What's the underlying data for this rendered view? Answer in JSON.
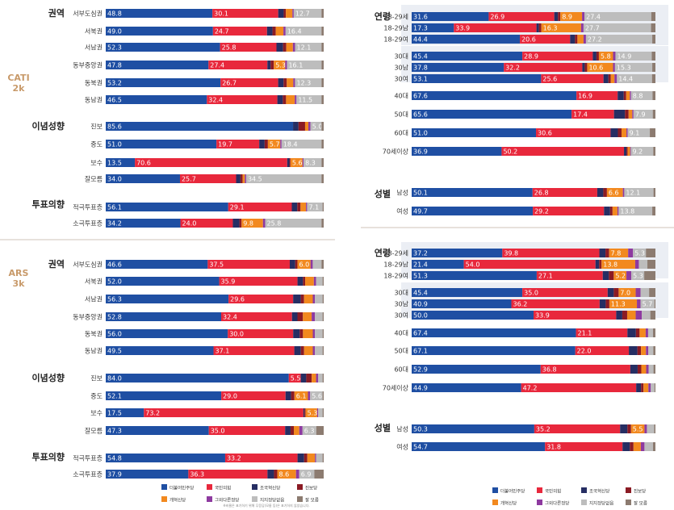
{
  "modes": {
    "cati": "CATI 2k",
    "ars": "ARS 3k"
  },
  "footnote": "※비율은 표기하기 위해 무응답(모름 등)은 표기하지 않았습니다.",
  "colors": {
    "democratic": "#1f4fa3",
    "ppp": "#e8283c",
    "rebuilding": "#262e63",
    "progressive": "#8b1b24",
    "reform": "#f2891f",
    "basic_income": "#8e3aa0",
    "none": "#bdbdbd",
    "dont_know": "#8c7b70"
  },
  "legend": [
    {
      "key": "democratic",
      "label": "더불어민주당"
    },
    {
      "key": "ppp",
      "label": "국민의힘"
    },
    {
      "key": "rebuilding",
      "label": "조국혁신당"
    },
    {
      "key": "progressive",
      "label": "진보당"
    },
    {
      "key": "reform",
      "label": "개혁신당"
    },
    {
      "key": "basic_income",
      "label": "그외다른정당"
    },
    {
      "key": "none",
      "label": "지지정당없음"
    },
    {
      "key": "dont_know",
      "label": "잘 모름"
    }
  ],
  "chart_data": [
    {
      "type": "bar",
      "title": "CATI 2k",
      "series": [
        "democratic",
        "ppp",
        "rebuilding",
        "progressive",
        "reform",
        "basic_income",
        "none",
        "dont_know"
      ],
      "groups": [
        {
          "label": "권역",
          "rows": [
            {
              "label": "서부도심권",
              "values": [
                48.8,
                30.1,
                2.5,
                1.0,
                3.0,
                0.6,
                12.7,
                1.0
              ]
            },
            {
              "label": "서북권",
              "values": [
                49.0,
                24.7,
                2.5,
                1.5,
                3.5,
                1.0,
                16.4,
                1.0
              ]
            },
            {
              "label": "서남권",
              "values": [
                52.3,
                25.8,
                3.0,
                1.5,
                3.0,
                1.0,
                12.1,
                1.0
              ]
            },
            {
              "label": "동부중앙권",
              "values": [
                47.8,
                27.4,
                1.5,
                1.5,
                5.3,
                0.8,
                16.1,
                1.0
              ]
            },
            {
              "label": "동북권",
              "values": [
                53.2,
                26.7,
                2.5,
                1.5,
                3.0,
                0.8,
                12.3,
                1.0
              ]
            },
            {
              "label": "동남권",
              "values": [
                46.5,
                32.4,
                2.5,
                1.5,
                4.0,
                0.8,
                11.5,
                1.0
              ]
            }
          ]
        },
        {
          "label": "이념성향",
          "rows": [
            {
              "label": "진보",
              "values": [
                85.6,
                0,
                2.5,
                3.0,
                1.5,
                1.0,
                5.0,
                1.0
              ]
            },
            {
              "label": "중도",
              "values": [
                51.0,
                19.7,
                2.5,
                1.5,
                5.7,
                0.6,
                18.4,
                1.0
              ]
            },
            {
              "label": "보수",
              "values": [
                13.5,
                70.6,
                1.0,
                0.5,
                5.6,
                0.5,
                8.3,
                1.0
              ]
            },
            {
              "label": "잘모름",
              "values": [
                34.0,
                25.7,
                2.0,
                1.0,
                1.0,
                0.6,
                34.5,
                1.0
              ]
            }
          ]
        },
        {
          "label": "투표의향",
          "rows": [
            {
              "label": "적극투표층",
              "values": [
                56.1,
                29.1,
                2.5,
                1.5,
                2.5,
                0.5,
                7.1,
                0.5
              ]
            },
            {
              "label": "소극투표층",
              "values": [
                34.2,
                24.0,
                3.0,
                1.0,
                9.8,
                1.0,
                25.8,
                1.0
              ]
            }
          ]
        }
      ]
    },
    {
      "type": "bar",
      "title": "ARS 3k",
      "series": [
        "democratic",
        "ppp",
        "rebuilding",
        "progressive",
        "reform",
        "basic_income",
        "none",
        "dont_know"
      ],
      "groups": [
        {
          "label": "권역",
          "rows": [
            {
              "label": "서부도심권",
              "values": [
                46.6,
                37.5,
                2.5,
                1.0,
                6.0,
                1.0,
                4.0,
                1.0
              ]
            },
            {
              "label": "서북권",
              "values": [
                52.0,
                35.9,
                2.5,
                1.0,
                4.0,
                1.0,
                3.0,
                0.5
              ]
            },
            {
              "label": "서남권",
              "values": [
                56.3,
                29.6,
                3.5,
                1.5,
                4.0,
                1.0,
                3.5,
                0.5
              ]
            },
            {
              "label": "동부중앙권",
              "values": [
                52.8,
                32.4,
                2.5,
                2.5,
                4.0,
                1.5,
                3.5,
                0.5
              ]
            },
            {
              "label": "동북권",
              "values": [
                56.0,
                30.0,
                3.0,
                1.5,
                4.5,
                1.0,
                3.5,
                0.5
              ]
            },
            {
              "label": "동남권",
              "values": [
                49.5,
                37.1,
                3.0,
                1.5,
                4.0,
                1.0,
                3.5,
                0.5
              ]
            }
          ]
        },
        {
          "label": "이념성향",
          "rows": [
            {
              "label": "진보",
              "values": [
                84.0,
                5.5,
                2.5,
                2.5,
                2.0,
                1.0,
                2.0,
                0.5
              ]
            },
            {
              "label": "중도",
              "values": [
                52.1,
                29.0,
                2.5,
                1.5,
                6.1,
                1.0,
                5.6,
                0.5
              ]
            },
            {
              "label": "보수",
              "values": [
                17.5,
                73.2,
                0.5,
                0.5,
                5.3,
                0.5,
                2.0,
                0.5
              ]
            },
            {
              "label": "잘모름",
              "values": [
                47.3,
                35.0,
                2.5,
                1.5,
                2.5,
                1.5,
                6.3,
                3.4
              ]
            }
          ]
        },
        {
          "label": "투표의향",
          "rows": [
            {
              "label": "적극투표층",
              "values": [
                54.8,
                33.2,
                3.0,
                1.5,
                3.5,
                0.5,
                3.0,
                0.5
              ]
            },
            {
              "label": "소극투표층",
              "values": [
                37.9,
                36.3,
                3.0,
                1.5,
                8.6,
                1.5,
                6.9,
                4.3
              ]
            }
          ]
        }
      ]
    },
    {
      "type": "bar",
      "title": "CATI 2k (연령·성별)",
      "series": [
        "democratic",
        "ppp",
        "rebuilding",
        "progressive",
        "reform",
        "basic_income",
        "none",
        "dont_know"
      ],
      "groups": [
        {
          "label": "연령",
          "rows": [
            {
              "label": "18-29세",
              "values": [
                31.6,
                26.9,
                1.5,
                1.0,
                8.9,
                1.0,
                27.4,
                1.7
              ]
            },
            {
              "label": "18-29남",
              "values": [
                17.3,
                33.9,
                1.0,
                1.0,
                16.3,
                1.0,
                27.7,
                1.8
              ]
            },
            {
              "label": "18-29여",
              "values": [
                44.4,
                20.6,
                2.0,
                1.0,
                2.5,
                1.0,
                27.2,
                1.3
              ]
            },
            {
              "label": "30대",
              "values": [
                45.4,
                28.9,
                1.5,
                1.0,
                5.8,
                1.0,
                14.9,
                1.5
              ]
            },
            {
              "label": "30남",
              "values": [
                37.8,
                32.2,
                1.0,
                1.0,
                10.6,
                0.8,
                15.3,
                1.3
              ]
            },
            {
              "label": "30여",
              "values": [
                53.1,
                25.6,
                2.0,
                1.0,
                1.5,
                1.0,
                14.4,
                1.4
              ]
            },
            {
              "label": "40대",
              "values": [
                67.6,
                16.9,
                2.5,
                1.0,
                1.5,
                0.5,
                8.8,
                1.2
              ]
            },
            {
              "label": "50대",
              "values": [
                65.6,
                17.4,
                4.5,
                1.5,
                1.5,
                0.5,
                7.9,
                1.1
              ]
            },
            {
              "label": "60대",
              "values": [
                51.0,
                30.6,
                3.0,
                1.5,
                2.0,
                0.5,
                9.1,
                2.3
              ]
            },
            {
              "label": "70세이상",
              "values": [
                36.9,
                50.2,
                1.0,
                0.5,
                1.0,
                0.3,
                9.2,
                0.9
              ]
            }
          ]
        },
        {
          "label": "성별",
          "rows": [
            {
              "label": "남성",
              "values": [
                50.1,
                26.8,
                2.5,
                1.5,
                6.6,
                0.6,
                12.1,
                0.8
              ]
            },
            {
              "label": "여성",
              "values": [
                49.7,
                29.2,
                2.5,
                1.0,
                2.0,
                0.5,
                13.8,
                1.3
              ]
            }
          ]
        }
      ]
    },
    {
      "type": "bar",
      "title": "ARS 3k (연령·성별)",
      "series": [
        "democratic",
        "ppp",
        "rebuilding",
        "progressive",
        "reform",
        "basic_income",
        "none",
        "dont_know"
      ],
      "groups": [
        {
          "label": "연령",
          "rows": [
            {
              "label": "18-29세",
              "values": [
                37.2,
                39.8,
                2.5,
                1.5,
                7.8,
                2.0,
                5.3,
                3.9
              ]
            },
            {
              "label": "18-29남",
              "values": [
                21.4,
                54.0,
                1.5,
                1.0,
                13.8,
                1.5,
                3.5,
                3.3
              ]
            },
            {
              "label": "18-29여",
              "values": [
                51.3,
                27.1,
                2.5,
                2.0,
                5.2,
                2.0,
                5.3,
                4.6
              ]
            },
            {
              "label": "30대",
              "values": [
                45.4,
                35.0,
                2.5,
                2.0,
                7.0,
                2.0,
                3.5,
                2.6
              ]
            },
            {
              "label": "30남",
              "values": [
                40.9,
                36.2,
                2.5,
                1.5,
                11.3,
                1.5,
                5.7,
                0.4
              ]
            },
            {
              "label": "30여",
              "values": [
                50.0,
                33.9,
                2.5,
                2.0,
                3.5,
                2.5,
                3.5,
                2.1
              ]
            },
            {
              "label": "40대",
              "values": [
                67.4,
                21.1,
                3.5,
                1.5,
                2.5,
                1.0,
                2.0,
                1.0
              ]
            },
            {
              "label": "50대",
              "values": [
                67.1,
                22.0,
                3.5,
                1.5,
                2.0,
                1.0,
                2.0,
                0.9
              ]
            },
            {
              "label": "60대",
              "values": [
                52.9,
                36.8,
                3.0,
                1.5,
                2.0,
                1.0,
                2.0,
                0.8
              ]
            },
            {
              "label": "70세이상",
              "values": [
                44.9,
                47.2,
                2.0,
                1.0,
                2.0,
                1.0,
                1.5,
                0.4
              ]
            }
          ]
        },
        {
          "label": "성별",
          "rows": [
            {
              "label": "남성",
              "values": [
                50.3,
                35.2,
                3.0,
                1.5,
                5.5,
                1.0,
                3.0,
                0.5
              ]
            },
            {
              "label": "여성",
              "values": [
                54.7,
                31.8,
                3.0,
                1.5,
                3.0,
                1.5,
                3.5,
                1.0
              ]
            }
          ]
        }
      ]
    }
  ]
}
